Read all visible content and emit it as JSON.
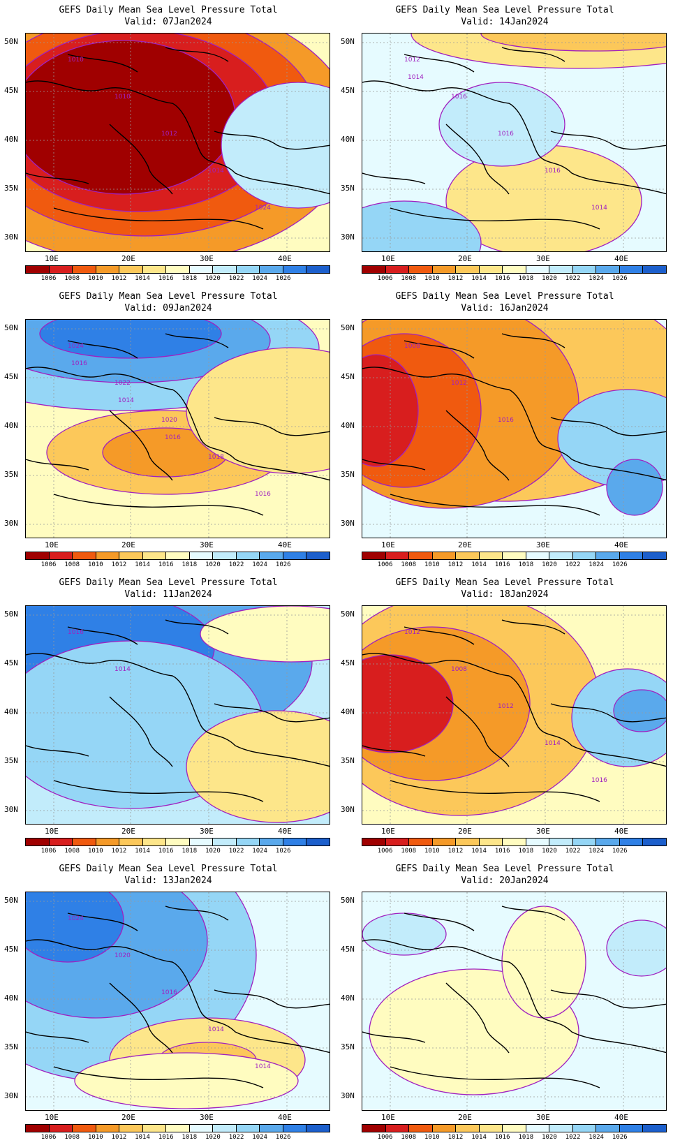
{
  "panel_title": "GEFS Daily Mean Sea Level Pressure Total",
  "lat_labels": [
    "50N",
    "45N",
    "40N",
    "35N",
    "30N"
  ],
  "lon_labels": [
    "10E",
    "20E",
    "30E",
    "40E"
  ],
  "colorbar": {
    "ticks": [
      "1006",
      "1008",
      "1010",
      "1012",
      "1014",
      "1016",
      "1018",
      "1020",
      "1022",
      "1024",
      "1026"
    ],
    "colors": [
      "#a00000",
      "#d81e1e",
      "#f05a0f",
      "#f59a28",
      "#fcc85a",
      "#fde68a",
      "#fffcc0",
      "#e6fbff",
      "#c2ecfb",
      "#95d6f6",
      "#5aa9ec",
      "#2f80e6",
      "#1c5fcc"
    ]
  },
  "panels": [
    {
      "valid": "Valid: 07Jan2024",
      "labels": [
        "1010",
        "1010",
        "1012",
        "1014",
        "1024"
      ]
    },
    {
      "valid": "Valid: 14Jan2024",
      "labels": [
        "1012",
        "1016",
        "1016",
        "1016",
        "1014",
        "1014"
      ]
    },
    {
      "valid": "Valid: 09Jan2024",
      "labels": [
        "1024",
        "1022",
        "1020",
        "1018",
        "1016",
        "1016",
        "1014",
        "1016"
      ]
    },
    {
      "valid": "Valid: 16Jan2024",
      "labels": [
        "1008",
        "1012",
        "1016"
      ]
    },
    {
      "valid": "Valid: 11Jan2024",
      "labels": [
        "1016",
        "1014"
      ]
    },
    {
      "valid": "Valid: 18Jan2024",
      "labels": [
        "1012",
        "1008",
        "1012",
        "1014",
        "1016"
      ]
    },
    {
      "valid": "Valid: 13Jan2024",
      "labels": [
        "1024",
        "1020",
        "1016",
        "1014",
        "1014"
      ]
    },
    {
      "valid": "Valid: 20Jan2024",
      "labels": []
    }
  ]
}
